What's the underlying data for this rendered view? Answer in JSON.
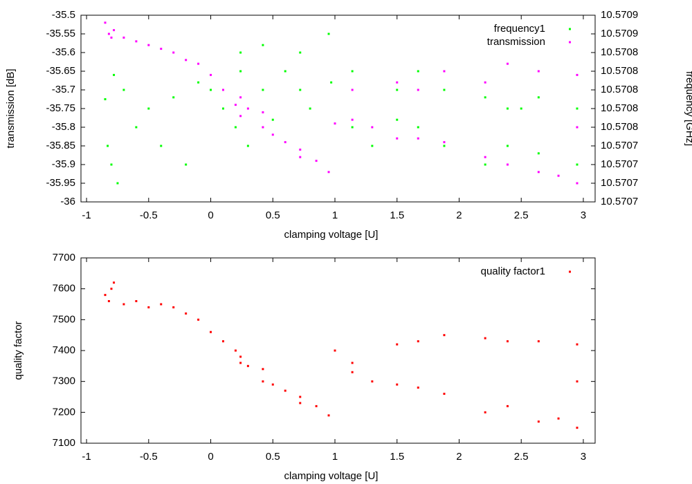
{
  "chart_data": [
    {
      "type": "scatter",
      "xlabel": "clamping voltage [U]",
      "ylabel": "transmission [dB]",
      "y2label": "frequency [GHz]",
      "xlim": [
        -1.045,
        3.095
      ],
      "xticks": [
        -1,
        -0.5,
        0,
        0.5,
        1,
        1.5,
        2,
        2.5,
        3
      ],
      "ylim": [
        -36,
        -35.5
      ],
      "yticks": [
        -36,
        -35.95,
        -35.9,
        -35.85,
        -35.8,
        -35.75,
        -35.7,
        -35.65,
        -35.6,
        -35.55,
        -35.5
      ],
      "y2lim": [
        10.57068,
        10.57088
      ],
      "y2ticks": [
        {
          "value": 10.57068,
          "label": "10.5707"
        },
        {
          "value": 10.5707,
          "label": "10.5707"
        },
        {
          "value": 10.57072,
          "label": "10.5707"
        },
        {
          "value": 10.57074,
          "label": "10.5707"
        },
        {
          "value": 10.57076,
          "label": "10.5708"
        },
        {
          "value": 10.57078,
          "label": "10.5708"
        },
        {
          "value": 10.5708,
          "label": "10.5708"
        },
        {
          "value": 10.57082,
          "label": "10.5708"
        },
        {
          "value": 10.57084,
          "label": "10.5708"
        },
        {
          "value": 10.57086,
          "label": "10.5709"
        },
        {
          "value": 10.57088,
          "label": "10.5709"
        }
      ],
      "legend": "upper right",
      "series": [
        {
          "name": "frequency1",
          "color": "#00ff00",
          "axis": "y2",
          "x": [
            -0.85,
            -0.83,
            -0.8,
            -0.78,
            -0.75,
            -0.7,
            -0.6,
            -0.5,
            -0.4,
            -0.3,
            -0.2,
            -0.1,
            0,
            0.1,
            0.2,
            0.24,
            0.24,
            0.3,
            0.42,
            0.42,
            0.5,
            0.6,
            0.72,
            0.72,
            0.8,
            0.95,
            0.97,
            1.14,
            1.14,
            1.3,
            1.5,
            1.5,
            1.67,
            1.67,
            1.88,
            1.88,
            2.21,
            2.21,
            2.39,
            2.39,
            2.5,
            2.64,
            2.64,
            2.95,
            2.95
          ],
          "values": [
            10.57079,
            10.57074,
            10.57072,
            10.570816,
            10.5707,
            10.5708,
            10.57076,
            10.57078,
            10.57074,
            10.570792,
            10.57072,
            10.570808,
            10.5708,
            10.57078,
            10.57076,
            10.57084,
            10.57082,
            10.57074,
            10.570848,
            10.5708,
            10.570768,
            10.57082,
            10.57084,
            10.5708,
            10.57078,
            10.57086,
            10.570808,
            10.57082,
            10.57076,
            10.57074,
            10.5708,
            10.570768,
            10.57082,
            10.57076,
            10.5708,
            10.57074,
            10.570792,
            10.57072,
            10.57078,
            10.57074,
            10.57078,
            10.570792,
            10.570732,
            10.57078,
            10.57072
          ]
        },
        {
          "name": "transmission",
          "color": "#ff00ff",
          "x": [
            -0.85,
            -0.82,
            -0.8,
            -0.78,
            -0.7,
            -0.6,
            -0.5,
            -0.4,
            -0.3,
            -0.2,
            -0.1,
            0,
            0.1,
            0.2,
            0.24,
            0.24,
            0.3,
            0.42,
            0.42,
            0.5,
            0.6,
            0.72,
            0.72,
            0.85,
            0.95,
            1,
            1.14,
            1.14,
            1.3,
            1.5,
            1.5,
            1.67,
            1.67,
            1.88,
            1.88,
            2.21,
            2.21,
            2.39,
            2.39,
            2.64,
            2.64,
            2.8,
            2.95,
            2.95,
            2.95
          ],
          "values": [
            -35.52,
            -35.55,
            -35.56,
            -35.54,
            -35.56,
            -35.57,
            -35.58,
            -35.59,
            -35.6,
            -35.62,
            -35.63,
            -35.66,
            -35.7,
            -35.74,
            -35.72,
            -35.77,
            -35.75,
            -35.76,
            -35.8,
            -35.82,
            -35.84,
            -35.86,
            -35.88,
            -35.89,
            -35.92,
            -35.79,
            -35.78,
            -35.7,
            -35.8,
            -35.83,
            -35.68,
            -35.83,
            -35.7,
            -35.84,
            -35.65,
            -35.88,
            -35.68,
            -35.9,
            -35.63,
            -35.92,
            -35.65,
            -35.93,
            -35.95,
            -35.66,
            -35.8
          ]
        }
      ]
    },
    {
      "type": "scatter",
      "xlabel": "clamping voltage [U]",
      "ylabel": "quality factor",
      "xlim": [
        -1.045,
        3.095
      ],
      "xticks": [
        -1,
        -0.5,
        0,
        0.5,
        1,
        1.5,
        2,
        2.5,
        3
      ],
      "ylim": [
        7100,
        7700
      ],
      "yticks": [
        7100,
        7200,
        7300,
        7400,
        7500,
        7600,
        7700
      ],
      "legend": "upper right",
      "series": [
        {
          "name": "quality factor1",
          "color": "#ff0000",
          "x": [
            -0.85,
            -0.82,
            -0.8,
            -0.78,
            -0.7,
            -0.6,
            -0.5,
            -0.4,
            -0.3,
            -0.2,
            -0.1,
            0,
            0.1,
            0.2,
            0.24,
            0.24,
            0.3,
            0.42,
            0.42,
            0.5,
            0.6,
            0.72,
            0.72,
            0.85,
            0.95,
            1,
            1.14,
            1.14,
            1.3,
            1.5,
            1.5,
            1.67,
            1.67,
            1.88,
            1.88,
            2.21,
            2.21,
            2.39,
            2.39,
            2.64,
            2.64,
            2.8,
            2.95,
            2.95,
            2.95
          ],
          "values": [
            7580,
            7560,
            7600,
            7620,
            7550,
            7560,
            7540,
            7550,
            7540,
            7520,
            7500,
            7460,
            7430,
            7400,
            7380,
            7360,
            7350,
            7340,
            7300,
            7290,
            7270,
            7250,
            7230,
            7220,
            7190,
            7400,
            7330,
            7360,
            7300,
            7290,
            7420,
            7280,
            7430,
            7260,
            7450,
            7200,
            7440,
            7220,
            7430,
            7170,
            7430,
            7180,
            7420,
            7150,
            7300
          ]
        }
      ]
    }
  ]
}
